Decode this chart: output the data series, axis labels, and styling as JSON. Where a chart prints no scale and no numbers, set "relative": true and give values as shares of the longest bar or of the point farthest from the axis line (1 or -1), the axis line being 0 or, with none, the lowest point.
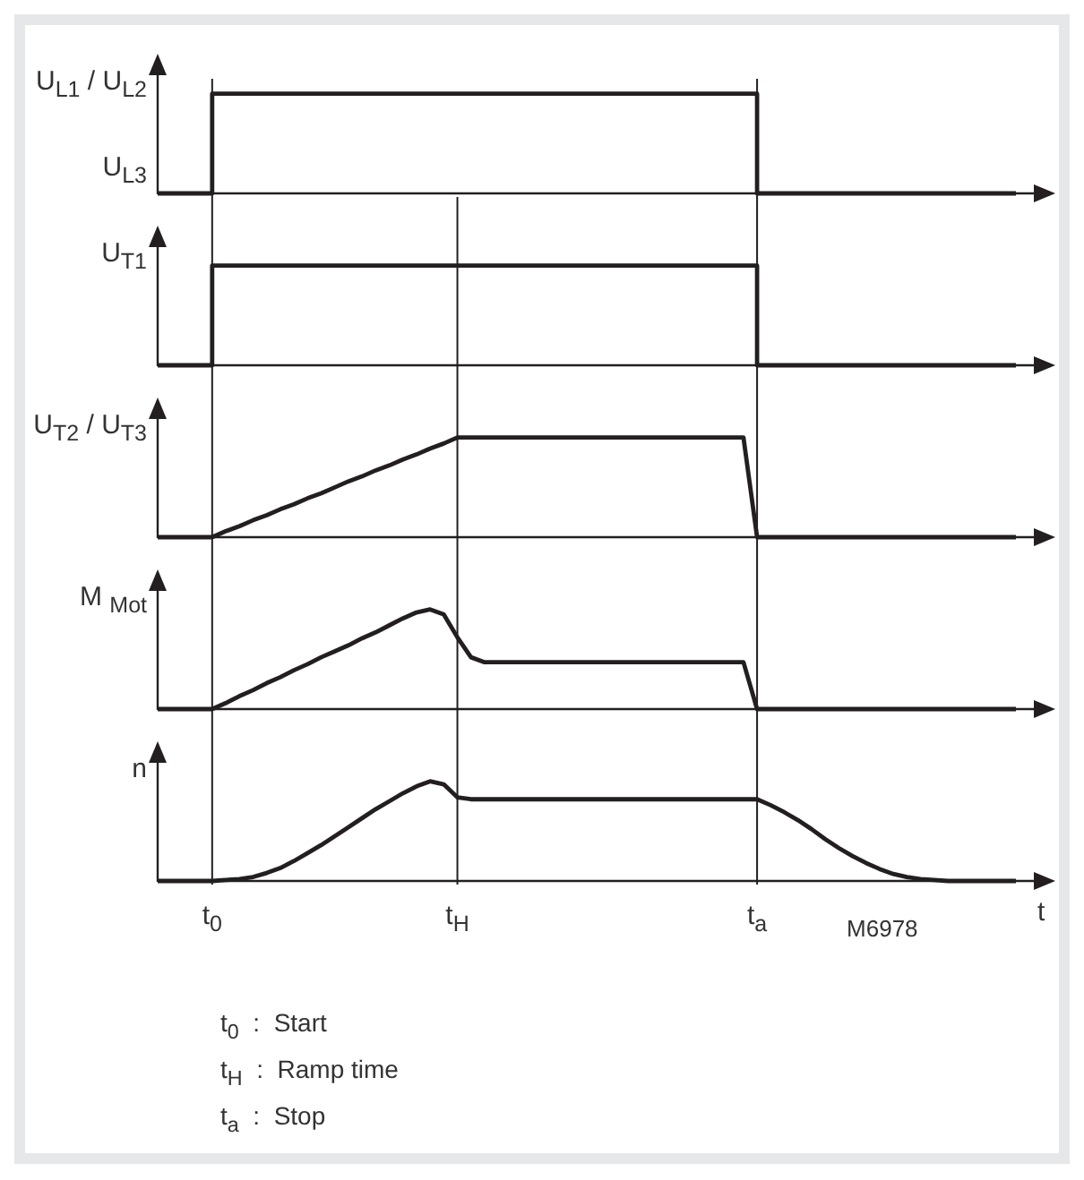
{
  "chart_data": [
    {
      "type": "step",
      "relative": true,
      "ylabel": "U$_{L1}$ / U$_{L2}$",
      "annotations": [
        "U$_{L3}$"
      ],
      "tick_labels": false,
      "grid": false,
      "marker": "none",
      "categories": [
        null,
        null,
        null,
        null,
        "t$_{0}$",
        null,
        null,
        null,
        null,
        null,
        null,
        null,
        null,
        null,
        null,
        null,
        null,
        null,
        null,
        null,
        null,
        null,
        "t$_{H}$",
        null,
        null,
        null,
        null,
        null,
        null,
        null,
        null,
        null,
        null,
        null,
        null,
        null,
        null,
        null,
        null,
        null,
        null,
        null,
        null,
        null,
        "t$_{a}$",
        null,
        null,
        null,
        null,
        null,
        null,
        null,
        null,
        null,
        null,
        null,
        null,
        null,
        null,
        null,
        null,
        null,
        null,
        null
      ],
      "series": [
        {
          "color": "#231f20",
          "values": [
            0,
            0,
            0,
            0,
            1,
            1,
            1,
            1,
            1,
            1,
            1,
            1,
            1,
            1,
            1,
            1,
            1,
            1,
            1,
            1,
            1,
            1,
            1,
            1,
            1,
            1,
            1,
            1,
            1,
            1,
            1,
            1,
            1,
            1,
            1,
            1,
            1,
            1,
            1,
            1,
            1,
            1,
            1,
            1,
            0,
            0,
            0,
            0,
            0,
            0,
            0,
            0,
            0,
            0,
            0,
            0,
            0,
            0,
            0,
            0,
            0,
            0,
            0,
            0
          ]
        }
      ],
      "ref_lines": [
        {
          "axis": "x",
          "value": "t$_{0}$",
          "color": "#231f20"
        },
        {
          "axis": "x",
          "value": "t$_{a}$",
          "color": "#231f20"
        }
      ]
    },
    {
      "type": "step",
      "relative": true,
      "ylabel": "U$_{T1}$",
      "tick_labels": false,
      "grid": false,
      "marker": "none",
      "categories": [
        null,
        null,
        null,
        null,
        "t$_{0}$",
        null,
        null,
        null,
        null,
        null,
        null,
        null,
        null,
        null,
        null,
        null,
        null,
        null,
        null,
        null,
        null,
        null,
        "t$_{H}$",
        null,
        null,
        null,
        null,
        null,
        null,
        null,
        null,
        null,
        null,
        null,
        null,
        null,
        null,
        null,
        null,
        null,
        null,
        null,
        null,
        null,
        "t$_{a}$",
        null,
        null,
        null,
        null,
        null,
        null,
        null,
        null,
        null,
        null,
        null,
        null,
        null,
        null,
        null,
        null,
        null,
        null,
        null
      ],
      "series": [
        {
          "color": "#231f20",
          "values": [
            0,
            0,
            0,
            0,
            1,
            1,
            1,
            1,
            1,
            1,
            1,
            1,
            1,
            1,
            1,
            1,
            1,
            1,
            1,
            1,
            1,
            1,
            1,
            1,
            1,
            1,
            1,
            1,
            1,
            1,
            1,
            1,
            1,
            1,
            1,
            1,
            1,
            1,
            1,
            1,
            1,
            1,
            1,
            1,
            0,
            0,
            0,
            0,
            0,
            0,
            0,
            0,
            0,
            0,
            0,
            0,
            0,
            0,
            0,
            0,
            0,
            0,
            0,
            0
          ]
        }
      ],
      "ref_lines": [
        {
          "axis": "x",
          "value": "t$_{0}$",
          "color": "#231f20"
        },
        {
          "axis": "x",
          "value": "t$_{H}$",
          "color": "#231f20"
        },
        {
          "axis": "x",
          "value": "t$_{a}$",
          "color": "#231f20"
        }
      ]
    },
    {
      "type": "line",
      "relative": true,
      "ylabel": "U$_{T2}$ / U$_{T3}$",
      "tick_labels": false,
      "grid": false,
      "marker": "none",
      "categories": [
        null,
        null,
        null,
        null,
        "t$_{0}$",
        null,
        null,
        null,
        null,
        null,
        null,
        null,
        null,
        null,
        null,
        null,
        null,
        null,
        null,
        null,
        null,
        null,
        "t$_{H}$",
        null,
        null,
        null,
        null,
        null,
        null,
        null,
        null,
        null,
        null,
        null,
        null,
        null,
        null,
        null,
        null,
        null,
        null,
        null,
        null,
        null,
        "t$_{a}$",
        null,
        null,
        null,
        null,
        null,
        null,
        null,
        null,
        null,
        null,
        null,
        null,
        null,
        null,
        null,
        null,
        null,
        null,
        null
      ],
      "series": [
        {
          "color": "#231f20",
          "values": [
            0,
            0,
            0,
            0,
            0,
            0.06,
            0.11,
            0.17,
            0.22,
            0.28,
            0.33,
            0.39,
            0.44,
            0.5,
            0.56,
            0.61,
            0.67,
            0.72,
            0.78,
            0.83,
            0.89,
            0.94,
            1,
            1,
            1,
            1,
            1,
            1,
            1,
            1,
            1,
            1,
            1,
            1,
            1,
            1,
            1,
            1,
            1,
            1,
            1,
            1,
            1,
            1,
            0,
            0,
            0,
            0,
            0,
            0,
            0,
            0,
            0,
            0,
            0,
            0,
            0,
            0,
            0,
            0,
            0,
            0,
            0,
            0
          ]
        }
      ],
      "ref_lines": [
        {
          "axis": "x",
          "value": "t$_{0}$",
          "color": "#231f20"
        },
        {
          "axis": "x",
          "value": "t$_{H}$",
          "color": "#231f20"
        },
        {
          "axis": "x",
          "value": "t$_{a}$",
          "color": "#231f20"
        }
      ]
    },
    {
      "type": "line",
      "relative": true,
      "ylabel": "M $_{Mot}$",
      "tick_labels": false,
      "grid": false,
      "marker": "none",
      "categories": [
        null,
        null,
        null,
        null,
        "t$_{0}$",
        null,
        null,
        null,
        null,
        null,
        null,
        null,
        null,
        null,
        null,
        null,
        null,
        null,
        null,
        null,
        null,
        null,
        "t$_{H}$",
        null,
        null,
        null,
        null,
        null,
        null,
        null,
        null,
        null,
        null,
        null,
        null,
        null,
        null,
        null,
        null,
        null,
        null,
        null,
        null,
        null,
        "t$_{a}$",
        null,
        null,
        null,
        null,
        null,
        null,
        null,
        null,
        null,
        null,
        null,
        null,
        null,
        null,
        null,
        null,
        null,
        null,
        null
      ],
      "series": [
        {
          "color": "#231f20",
          "values": [
            0,
            0,
            0,
            0,
            0,
            0.06,
            0.13,
            0.19,
            0.26,
            0.32,
            0.39,
            0.45,
            0.52,
            0.58,
            0.64,
            0.71,
            0.77,
            0.84,
            0.91,
            0.97,
            1,
            0.95,
            0.72,
            0.52,
            0.47,
            0.47,
            0.47,
            0.47,
            0.47,
            0.47,
            0.47,
            0.47,
            0.47,
            0.47,
            0.47,
            0.47,
            0.47,
            0.47,
            0.47,
            0.47,
            0.47,
            0.47,
            0.47,
            0.47,
            0,
            0,
            0,
            0,
            0,
            0,
            0,
            0,
            0,
            0,
            0,
            0,
            0,
            0,
            0,
            0,
            0,
            0,
            0,
            0
          ]
        }
      ],
      "ref_lines": [
        {
          "axis": "x",
          "value": "t$_{0}$",
          "color": "#231f20"
        },
        {
          "axis": "x",
          "value": "t$_{H}$",
          "color": "#231f20"
        },
        {
          "axis": "x",
          "value": "t$_{a}$",
          "color": "#231f20"
        }
      ]
    },
    {
      "type": "line",
      "relative": true,
      "ylabel": "n",
      "xlabel": "t",
      "annotations": [
        "M6978",
        "t$_{0}$  :  Start",
        "t$_{H}$  :  Ramp time",
        "t$_{a}$  :  Stop"
      ],
      "tick_labels": "x",
      "grid": false,
      "marker": "none",
      "categories": [
        null,
        null,
        null,
        null,
        "t$_{0}$",
        null,
        null,
        null,
        null,
        null,
        null,
        null,
        null,
        null,
        null,
        null,
        null,
        null,
        null,
        null,
        null,
        null,
        "t$_{H}$",
        null,
        null,
        null,
        null,
        null,
        null,
        null,
        null,
        null,
        null,
        null,
        null,
        null,
        null,
        null,
        null,
        null,
        null,
        null,
        null,
        null,
        "t$_{a}$",
        null,
        null,
        null,
        null,
        null,
        null,
        null,
        null,
        null,
        null,
        null,
        null,
        null,
        null,
        null,
        null,
        null,
        null,
        null
      ],
      "series": [
        {
          "color": "#231f20",
          "values": [
            0,
            0,
            0,
            0,
            0,
            0.01,
            0.02,
            0.04,
            0.08,
            0.13,
            0.2,
            0.28,
            0.36,
            0.45,
            0.54,
            0.63,
            0.72,
            0.8,
            0.88,
            0.95,
            1,
            0.97,
            0.84,
            0.82,
            0.82,
            0.82,
            0.82,
            0.82,
            0.82,
            0.82,
            0.82,
            0.82,
            0.82,
            0.82,
            0.82,
            0.82,
            0.82,
            0.82,
            0.82,
            0.82,
            0.82,
            0.82,
            0.82,
            0.82,
            0.82,
            0.76,
            0.69,
            0.61,
            0.52,
            0.42,
            0.33,
            0.25,
            0.18,
            0.12,
            0.07,
            0.04,
            0.02,
            0.01,
            0,
            0,
            0,
            0,
            0,
            0
          ]
        }
      ],
      "ref_lines": [
        {
          "axis": "x",
          "value": "t$_{0}$",
          "color": "#231f20"
        },
        {
          "axis": "x",
          "value": "t$_{H}$",
          "color": "#231f20"
        },
        {
          "axis": "x",
          "value": "t$_{a}$",
          "color": "#231f20"
        }
      ]
    }
  ]
}
